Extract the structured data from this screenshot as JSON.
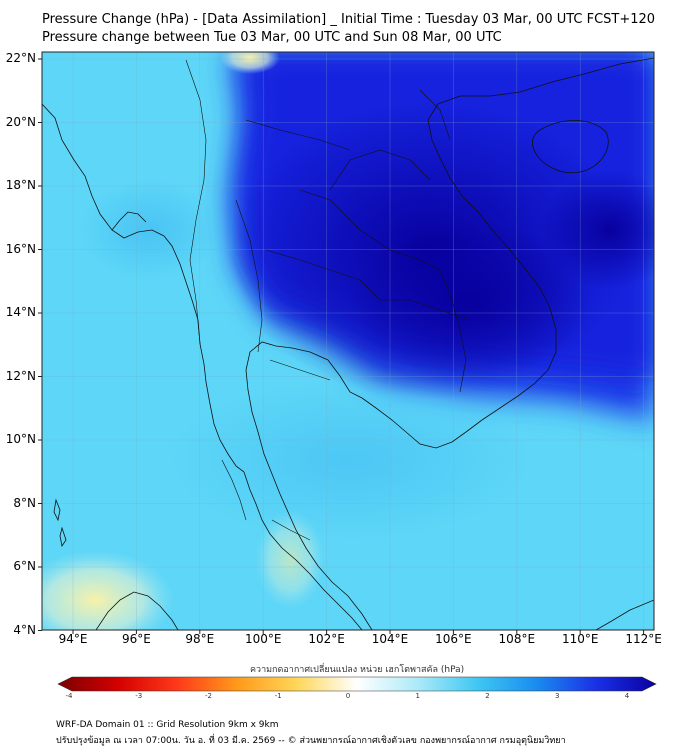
{
  "title": {
    "line1": "Pressure Change (hPa) - [Data Assimilation] _ Initial Time : Tuesday 03 Mar, 00 UTC FCST+120",
    "line2": "Pressure change between Tue 03 Mar, 00 UTC and Sun 08 Mar, 00 UTC"
  },
  "axes": {
    "lat_labels": [
      "22°N",
      "20°N",
      "18°N",
      "16°N",
      "14°N",
      "12°N",
      "10°N",
      "8°N",
      "6°N",
      "4°N"
    ],
    "lon_labels": [
      "94°E",
      "96°E",
      "98°E",
      "100°E",
      "102°E",
      "104°E",
      "106°E",
      "108°E",
      "110°E",
      "112°E"
    ]
  },
  "colorbar": {
    "title": "ความกดอากาศเปลี่ยนแปลง หน่วย เฮกโตพาสคัล (hPa)",
    "ticks": [
      "-4",
      "-3",
      "-2",
      "-1",
      "0",
      "1",
      "2",
      "3",
      "4"
    ],
    "range": [
      -4,
      4
    ]
  },
  "colors": {
    "deep_blue": "#0a00b8",
    "blue": "#1a2ee6",
    "light_cyan": "#5ed4f6",
    "pale_yellow": "#f4f0b0"
  },
  "footer": {
    "line1": "WRF-DA Domain 01 :: Grid Resolution 9km x 9km",
    "line2": "ปรับปรุงข้อมูล ณ เวลา 07:00น. วัน อ. ที่ 03 มี.ค. 2569 -- © ส่วนพยากรณ์อากาศเชิงตัวเลข กองพยากรณ์อากาศ กรมอุตุนิยมวิทยา"
  }
}
